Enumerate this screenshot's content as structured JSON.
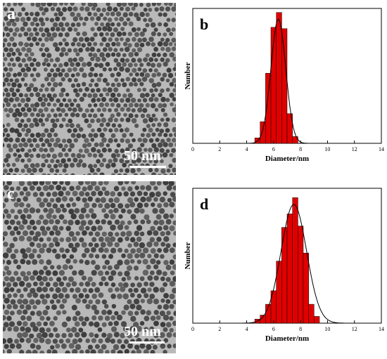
{
  "panels": {
    "a": {
      "label": "a",
      "scale_label": "50 nm"
    },
    "c": {
      "label": "c",
      "scale_label": "50 nm"
    }
  },
  "chart_data": [
    {
      "type": "bar",
      "label": "b",
      "xlabel": "Diameter/nm",
      "ylabel": "Number",
      "xlim": [
        0,
        14
      ],
      "x_ticks": [
        0,
        2,
        4,
        6,
        8,
        10,
        12,
        14
      ],
      "bar_width": 0.4,
      "x": [
        4.8,
        5.2,
        5.6,
        6.0,
        6.4,
        6.8,
        7.2,
        7.6
      ],
      "values": [
        0.04,
        0.16,
        0.52,
        0.86,
        0.97,
        0.85,
        0.22,
        0.05
      ],
      "fit_curve": {
        "type": "gaussian",
        "mean": 6.35,
        "sigma": 0.55,
        "peak": 0.92
      },
      "bar_color": "#e00000"
    },
    {
      "type": "bar",
      "label": "d",
      "xlabel": "Diameter/nm",
      "ylabel": "Number",
      "xlim": [
        0,
        14
      ],
      "x_ticks": [
        0,
        2,
        4,
        6,
        8,
        10,
        12,
        14
      ],
      "bar_width": 0.4,
      "x": [
        4.8,
        5.2,
        5.6,
        6.0,
        6.4,
        6.8,
        7.2,
        7.6,
        8.0,
        8.4,
        8.8,
        9.2
      ],
      "values": [
        0.03,
        0.06,
        0.14,
        0.24,
        0.46,
        0.71,
        0.81,
        0.93,
        0.72,
        0.52,
        0.14,
        0.05
      ],
      "fit_curve": {
        "type": "gaussian",
        "mean": 7.5,
        "sigma": 0.95,
        "peak": 0.88
      },
      "bar_color": "#e00000"
    }
  ]
}
